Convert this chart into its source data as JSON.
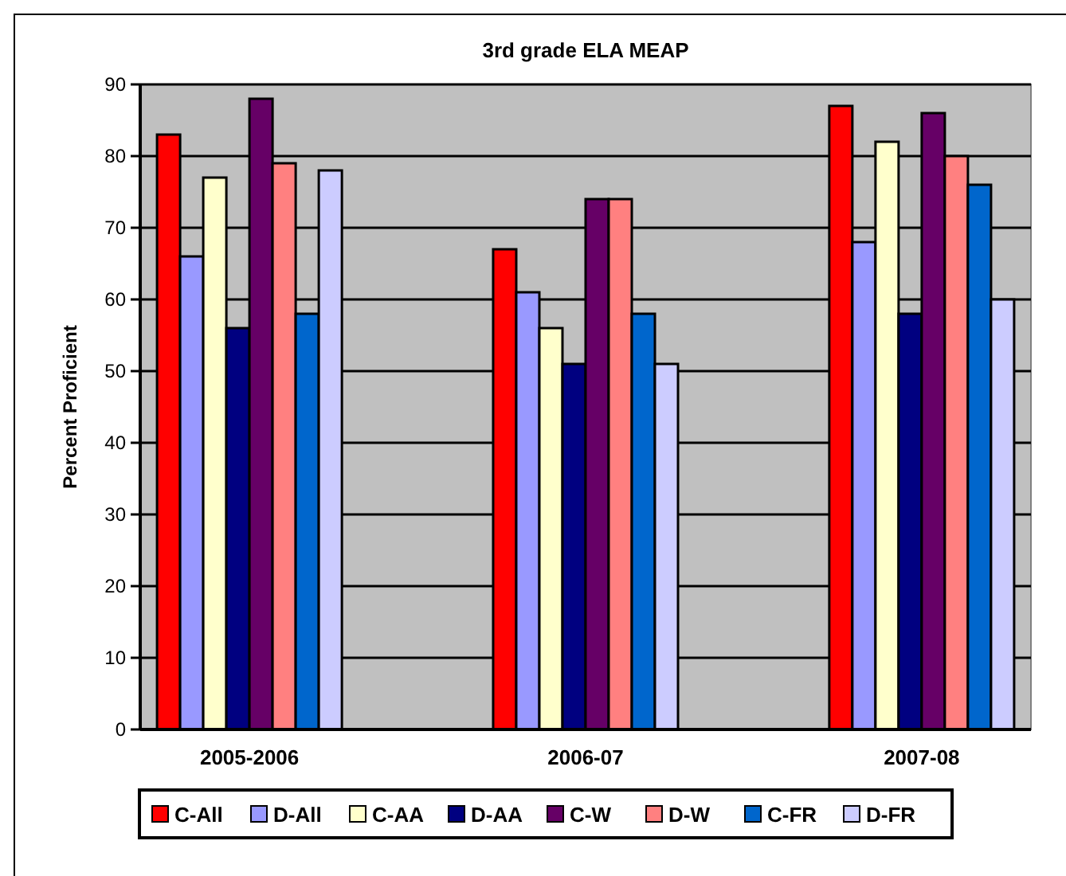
{
  "chart_data": {
    "type": "bar",
    "title": "3rd grade ELA MEAP",
    "ylabel": "Percent Proficient",
    "categories": [
      "2005-2006",
      "2006-07",
      "2007-08"
    ],
    "series": [
      {
        "name": "C-All",
        "color": "#ff0000",
        "values": [
          83,
          67,
          87
        ]
      },
      {
        "name": "D-All",
        "color": "#9999ff",
        "values": [
          66,
          61,
          68
        ]
      },
      {
        "name": "C-AA",
        "color": "#ffffcc",
        "values": [
          77,
          56,
          82
        ]
      },
      {
        "name": "D-AA",
        "color": "#000080",
        "values": [
          56,
          51,
          58
        ]
      },
      {
        "name": "C-W",
        "color": "#660066",
        "values": [
          88,
          74,
          86
        ]
      },
      {
        "name": "D-W",
        "color": "#ff8080",
        "values": [
          79,
          74,
          80
        ]
      },
      {
        "name": "C-FR",
        "color": "#0066cc",
        "values": [
          58,
          58,
          76
        ]
      },
      {
        "name": "D-FR",
        "color": "#ccccff",
        "values": [
          78,
          51,
          60
        ]
      }
    ],
    "ylim": [
      0,
      90
    ],
    "yticks": [
      0,
      10,
      20,
      30,
      40,
      50,
      60,
      70,
      80,
      90
    ],
    "grid": "y",
    "legend": "bottom"
  }
}
